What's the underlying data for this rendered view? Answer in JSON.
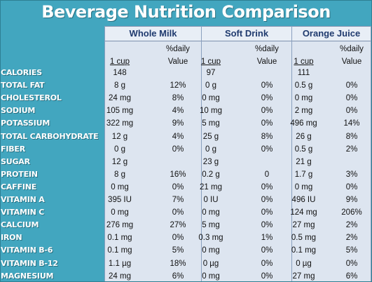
{
  "title": "Beverage Nutrition Comparison",
  "products": [
    "Whole Milk",
    "Soft Drink",
    "Orange Juice"
  ],
  "serving_label": "1 cup",
  "daily_label_1": "%daily",
  "daily_label_2": "Value",
  "rows": [
    {
      "label": "Calories",
      "indent": false,
      "values": [
        "148",
        "",
        "97",
        "",
        "111",
        ""
      ]
    },
    {
      "label": "Total Fat",
      "indent": false,
      "values": [
        "8 g",
        "12%",
        "0 g",
        "0%",
        "0.5 g",
        "0%"
      ]
    },
    {
      "label": "Cholesterol",
      "indent": false,
      "values": [
        "24 mg",
        "8%",
        "0 mg",
        "0%",
        "0 mg",
        "0%"
      ]
    },
    {
      "label": "Sodium",
      "indent": false,
      "values": [
        "105 mg",
        "4%",
        "10 mg",
        "0%",
        "2 mg",
        "0%"
      ]
    },
    {
      "label": "Potassium",
      "indent": false,
      "values": [
        "322 mg",
        "9%",
        "5 mg",
        "0%",
        "496 mg",
        "14%"
      ]
    },
    {
      "label": "Total Carbohydrate",
      "indent": false,
      "values": [
        "12 g",
        "4%",
        "25 g",
        "8%",
        "26 g",
        "8%"
      ]
    },
    {
      "label": "Fiber",
      "indent": true,
      "values": [
        "0 g",
        "0%",
        "0 g",
        "0%",
        "0.5 g",
        "2%"
      ]
    },
    {
      "label": "Sugar",
      "indent": true,
      "values": [
        "12 g",
        "",
        "23 g",
        "",
        "21 g",
        ""
      ]
    },
    {
      "label": "Protein",
      "indent": false,
      "values": [
        "8 g",
        "16%",
        "0.2 g",
        "0",
        "1.7 g",
        "3%"
      ]
    },
    {
      "label": "Caffine",
      "indent": false,
      "values": [
        "0 mg",
        "0%",
        "21 mg",
        "0%",
        "0 mg",
        "0%"
      ]
    },
    {
      "label": "Vitamin A",
      "indent": false,
      "values": [
        "395 IU",
        "7%",
        "0 IU",
        "0%",
        "496 IU",
        "9%"
      ]
    },
    {
      "label": "Vitamin C",
      "indent": false,
      "values": [
        "0 mg",
        "0%",
        "0 mg",
        "0%",
        "124 mg",
        "206%"
      ]
    },
    {
      "label": "Calcium",
      "indent": false,
      "values": [
        "276 mg",
        "27%",
        "5 mg",
        "0%",
        "27 mg",
        "2%"
      ]
    },
    {
      "label": "Iron",
      "indent": false,
      "values": [
        "0.1 mg",
        "0%",
        "0.3 mg",
        "1%",
        "0.5 mg",
        "2%"
      ]
    },
    {
      "label": "Vitamin B-6",
      "indent": false,
      "values": [
        "0.1 mg",
        "5%",
        "0 mg",
        "0%",
        "0.1 mg",
        "5%"
      ]
    },
    {
      "label": "Vitamin B-12",
      "indent": false,
      "values": [
        "1.1 µg",
        "18%",
        "0 µg",
        "0%",
        "0 µg",
        "0%"
      ]
    },
    {
      "label": "Magnesium",
      "indent": false,
      "values": [
        "24 mg",
        "6%",
        "0 mg",
        "0%",
        "27 mg",
        "6%"
      ]
    }
  ],
  "colors": {
    "background": "#42a6bf",
    "panel": "#dde5f0",
    "header_text": "#1f3a6e"
  }
}
